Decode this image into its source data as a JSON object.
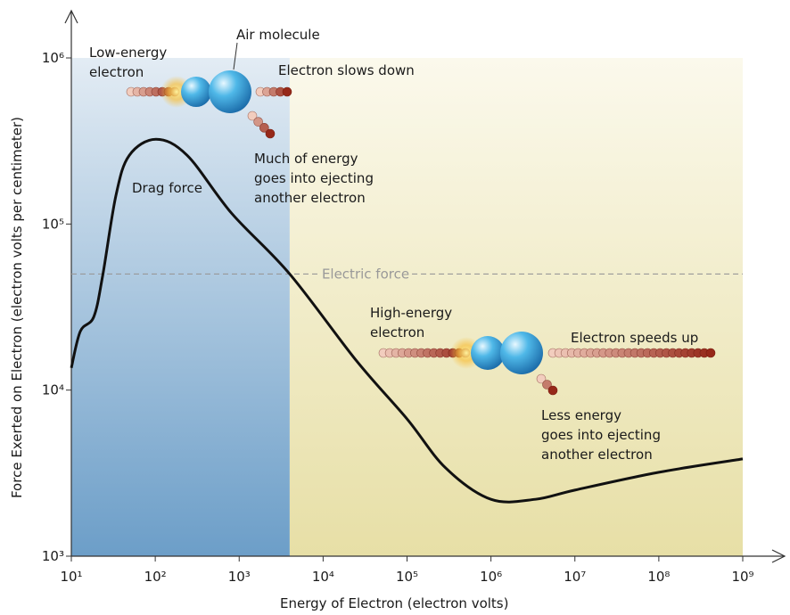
{
  "chart_data": {
    "type": "line",
    "log_x": true,
    "log_y": true,
    "x_label": "Energy of Electron (electron volts)",
    "y_label": "Force Exerted on Electron (electron volts per centimeter)",
    "xlim": [
      10,
      1000000000
    ],
    "ylim": [
      1000,
      1000000
    ],
    "xticks": [
      {
        "value": 10,
        "label": "10¹"
      },
      {
        "value": 100,
        "label": "10²"
      },
      {
        "value": 1000,
        "label": "10³"
      },
      {
        "value": 10000,
        "label": "10⁴"
      },
      {
        "value": 100000,
        "label": "10⁵"
      },
      {
        "value": 1000000,
        "label": "10⁶"
      },
      {
        "value": 10000000,
        "label": "10⁷"
      },
      {
        "value": 100000000,
        "label": "10⁸"
      },
      {
        "value": 1000000000,
        "label": "10⁹"
      }
    ],
    "yticks": [
      {
        "value": 1000,
        "label": "10³"
      },
      {
        "value": 10000,
        "label": "10⁴"
      },
      {
        "value": 100000,
        "label": "10⁵"
      },
      {
        "value": 1000000,
        "label": "10⁶"
      }
    ],
    "regions": [
      {
        "xlim": [
          10,
          4000
        ],
        "colors": [
          "#e3ecf4",
          "#6c9ec8"
        ]
      },
      {
        "xlim": [
          4000,
          1000000000
        ],
        "colors": [
          "#fbf9ec",
          "#e7dfa6"
        ]
      }
    ],
    "electric_force": {
      "label": "Electric force",
      "value": 50000,
      "color": "#999999"
    },
    "x": [
      10,
      12.8,
      18.5,
      23.6,
      34,
      49,
      102,
      240,
      813,
      4000,
      25000,
      100000,
      288000,
      1000000,
      3390000,
      10000000,
      100000000,
      1000000000
    ],
    "series": [
      {
        "name": "Drag force",
        "color": "#111111",
        "values": [
          13600,
          22600,
          27600,
          48700,
          148600,
          259000,
          324000,
          259000,
          116000,
          50000,
          15000,
          6700,
          3400,
          2200,
          2200,
          2500,
          3200,
          3850
        ]
      }
    ],
    "annotations": [
      [
        "Low-energy",
        "electron"
      ],
      [
        "Air molecule"
      ],
      [
        "Electron slows down"
      ],
      [
        "Much of energy",
        "goes into ejecting",
        "another electron"
      ],
      [
        "High-energy",
        "electron"
      ],
      [
        "Electron speeds up"
      ],
      [
        "Less energy",
        "goes into ejecting",
        "another electron"
      ]
    ]
  }
}
